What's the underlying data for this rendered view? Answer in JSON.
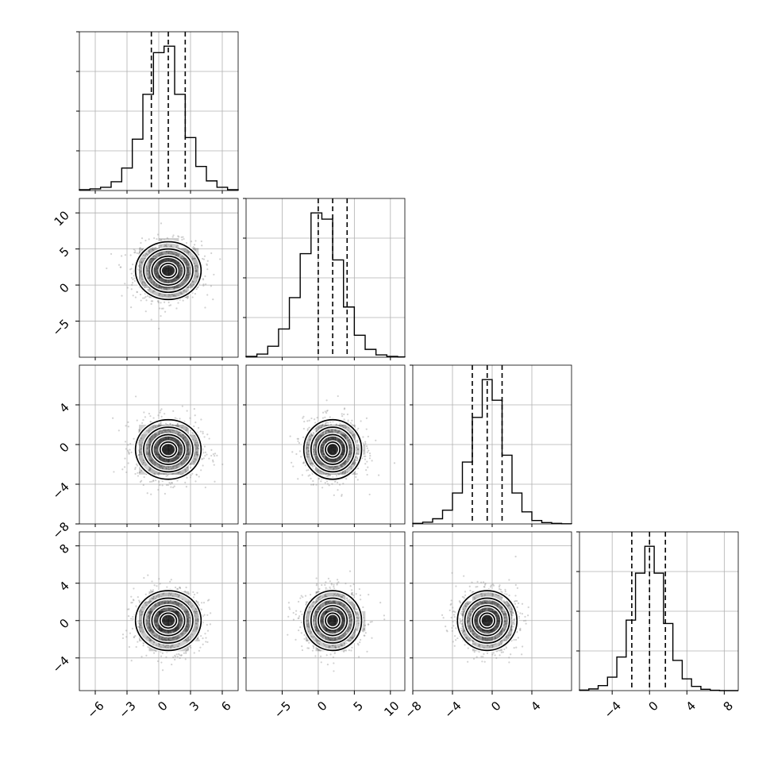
{
  "chart_data": {
    "type": "corner",
    "parameters": [
      {
        "lim": [
          -7.5,
          7.5
        ],
        "ticks": [
          -6,
          -3,
          0,
          3,
          6
        ]
      },
      {
        "lim": [
          -10,
          12
        ],
        "ticks": [
          -5,
          0,
          5,
          10
        ]
      },
      {
        "lim": [
          -8,
          8
        ],
        "ticks": [
          -8,
          -4,
          0,
          4
        ]
      },
      {
        "lim": [
          -7.5,
          9.5
        ],
        "ticks": [
          -4,
          0,
          4,
          8
        ]
      }
    ],
    "grid": true,
    "histograms": [
      {
        "bin_edges": [
          -7.5,
          -6.5,
          -5.5,
          -4.5,
          -3.5,
          -2.5,
          -1.5,
          -0.5,
          0.5,
          1.5,
          2.5,
          3.5,
          4.5,
          5.5,
          6.5,
          7.5
        ],
        "counts": [
          0.005,
          0.01,
          0.02,
          0.055,
          0.14,
          0.32,
          0.6,
          0.86,
          0.9,
          0.6,
          0.33,
          0.15,
          0.06,
          0.02,
          0.005
        ],
        "quantiles": [
          -0.7,
          0.9,
          2.5
        ]
      },
      {
        "bin_edges": [
          -10,
          -8.5,
          -7,
          -5.5,
          -4,
          -2.5,
          -1,
          0.5,
          2,
          3.5,
          5,
          6.5,
          8,
          9.5,
          11,
          12
        ],
        "counts": [
          0.005,
          0.02,
          0.07,
          0.18,
          0.38,
          0.66,
          0.92,
          0.88,
          0.62,
          0.32,
          0.14,
          0.05,
          0.015,
          0.005,
          0.002
        ],
        "quantiles": [
          0.0,
          2.0,
          4.0
        ]
      },
      {
        "bin_edges": [
          -8,
          -7,
          -6,
          -5,
          -4,
          -3,
          -2,
          -1,
          0,
          1,
          2,
          3,
          4,
          5,
          6,
          7,
          8
        ],
        "counts": [
          0.003,
          0.01,
          0.03,
          0.08,
          0.18,
          0.36,
          0.62,
          0.84,
          0.72,
          0.4,
          0.18,
          0.07,
          0.02,
          0.008,
          0.003,
          0.001
        ],
        "quantiles": [
          -2.0,
          -0.5,
          1.0
        ]
      },
      {
        "bin_edges": [
          -7.5,
          -6.5,
          -5.5,
          -4.5,
          -3.5,
          -2.5,
          -1.5,
          -0.5,
          0.5,
          1.5,
          2.5,
          3.5,
          4.5,
          5.5,
          6.5,
          7.5,
          8.5,
          9.5
        ],
        "counts": [
          0.003,
          0.01,
          0.03,
          0.08,
          0.2,
          0.42,
          0.7,
          0.86,
          0.7,
          0.4,
          0.18,
          0.07,
          0.025,
          0.008,
          0.002,
          0.0,
          0.0
        ],
        "quantiles": [
          -1.9,
          0.0,
          1.7
        ]
      }
    ],
    "pairs": [
      {
        "row": 1,
        "col": 0,
        "mean": [
          0.9,
          2.0
        ],
        "sigma": [
          1.55,
          2.0
        ]
      },
      {
        "row": 2,
        "col": 0,
        "mean": [
          0.9,
          -0.5
        ],
        "sigma": [
          1.55,
          1.5
        ]
      },
      {
        "row": 2,
        "col": 1,
        "mean": [
          2.0,
          -0.5
        ],
        "sigma": [
          2.0,
          1.5
        ]
      },
      {
        "row": 3,
        "col": 0,
        "mean": [
          0.9,
          0.0
        ],
        "sigma": [
          1.55,
          1.6
        ]
      },
      {
        "row": 3,
        "col": 1,
        "mean": [
          2.0,
          0.0
        ],
        "sigma": [
          2.0,
          1.6
        ]
      },
      {
        "row": 3,
        "col": 2,
        "mean": [
          -0.5,
          0.0
        ],
        "sigma": [
          1.5,
          1.6
        ]
      }
    ],
    "contour_levels_sigma": [
      0.5,
      1.0,
      1.5,
      2.0
    ],
    "colors": {
      "hist_line": "#000000",
      "points": "#9a9a9a",
      "grid": "#b0b0b0",
      "density": "#000000"
    }
  }
}
